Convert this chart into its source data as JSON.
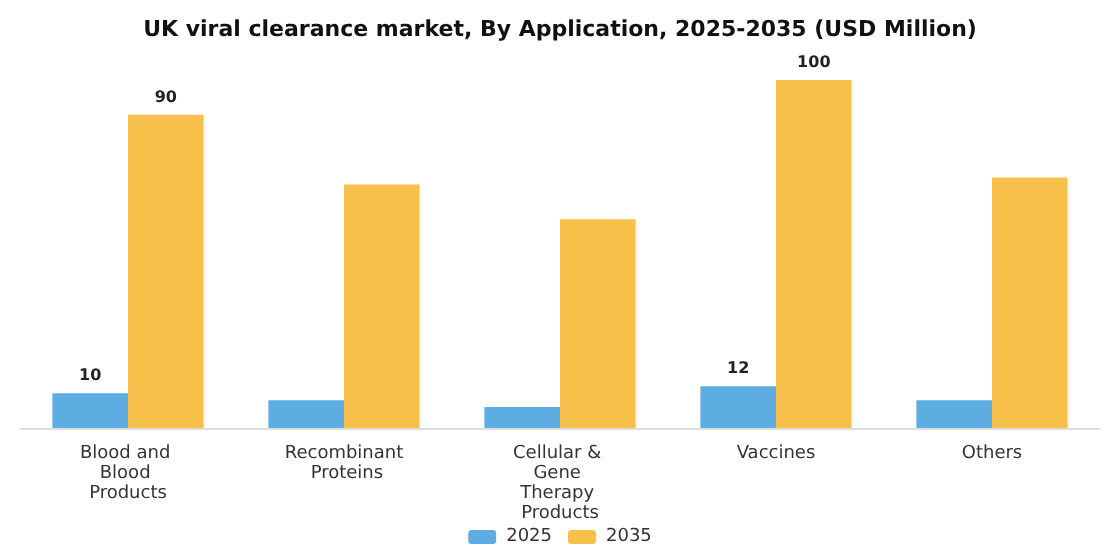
{
  "chart_data": {
    "type": "bar",
    "title": "UK viral clearance market, By Application, 2025-2035 (USD Million)",
    "categories": [
      "Blood and Blood Products",
      "Recombinant Proteins",
      "Cellular & Gene Therapy Products",
      "Vaccines",
      "Others"
    ],
    "series": [
      {
        "name": "2025",
        "color": "#5dade2",
        "values": [
          10,
          8,
          6,
          12,
          8
        ],
        "value_labels": [
          "10",
          null,
          null,
          "12",
          null
        ]
      },
      {
        "name": "2035",
        "color": "#f7c04a",
        "values": [
          90,
          70,
          60,
          100,
          72
        ],
        "value_labels": [
          "90",
          null,
          null,
          "100",
          null
        ]
      }
    ],
    "legend": "bottom"
  }
}
